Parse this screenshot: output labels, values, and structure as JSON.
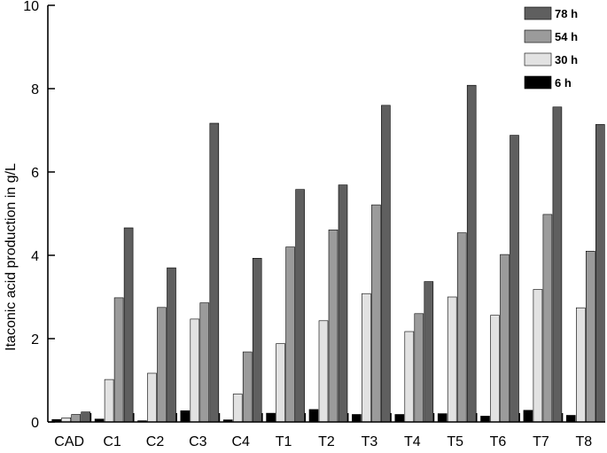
{
  "chart_data": {
    "type": "bar",
    "title": "",
    "xlabel": "",
    "ylabel": "Itaconic acid production in g/L",
    "ylim": [
      0,
      10
    ],
    "yticks": [
      0,
      2,
      4,
      6,
      8,
      10
    ],
    "legend_placement": "top-right",
    "grid": false,
    "categories": [
      "CAD",
      "C1",
      "C2",
      "C3",
      "C4",
      "T1",
      "T2",
      "T3",
      "T4",
      "T5",
      "T6",
      "T7",
      "T8"
    ],
    "series": [
      {
        "name": "6 h",
        "color": "#000000",
        "values": [
          0.06,
          0.07,
          0.03,
          0.27,
          0.05,
          0.21,
          0.3,
          0.18,
          0.18,
          0.2,
          0.14,
          0.28,
          0.16
        ]
      },
      {
        "name": "30 h",
        "color": "#e2e2e2",
        "values": [
          0.1,
          1.02,
          1.17,
          2.47,
          0.67,
          1.88,
          2.43,
          3.08,
          2.17,
          3.0,
          2.56,
          3.18,
          2.74
        ]
      },
      {
        "name": "54 h",
        "color": "#9b9b9b",
        "values": [
          0.18,
          2.98,
          2.75,
          2.86,
          1.68,
          4.2,
          4.61,
          5.21,
          2.6,
          4.54,
          4.02,
          4.98,
          4.1
        ]
      },
      {
        "name": "78 h",
        "color": "#5f5f5f",
        "values": [
          0.24,
          4.66,
          3.7,
          7.17,
          3.93,
          5.58,
          5.69,
          7.6,
          3.37,
          8.08,
          6.88,
          7.56,
          7.14
        ]
      }
    ],
    "legend_order": [
      3,
      2,
      1,
      0
    ]
  }
}
